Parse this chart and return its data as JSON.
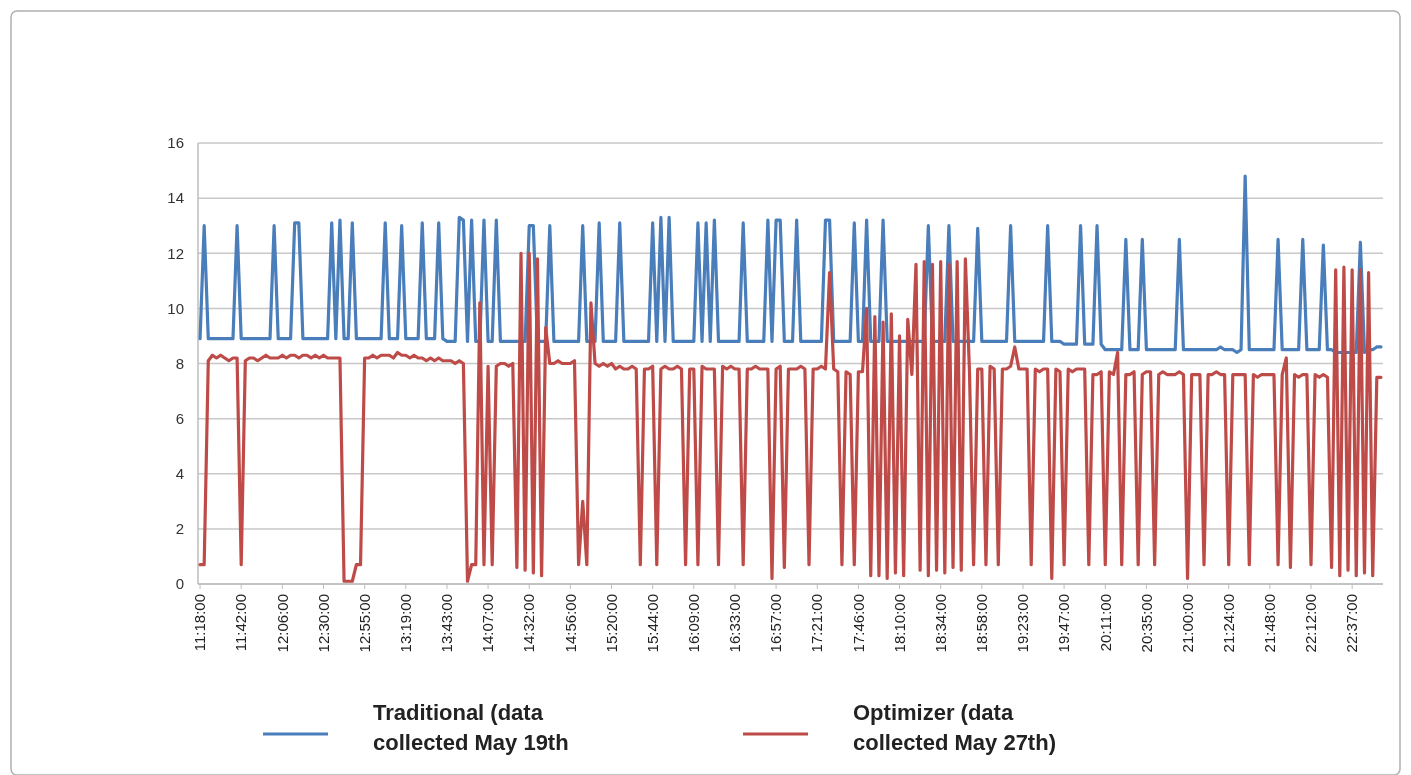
{
  "chart_data": {
    "type": "line",
    "ylim": [
      0,
      16
    ],
    "yticks": [
      0,
      2,
      4,
      6,
      8,
      10,
      12,
      14,
      16
    ],
    "grid": "y",
    "legend": "bottom",
    "marker": "none",
    "line_style": "solid",
    "categories": [
      "11:18:00",
      null,
      null,
      null,
      null,
      null,
      null,
      null,
      null,
      null,
      "11:42:00",
      null,
      null,
      null,
      null,
      null,
      null,
      null,
      null,
      null,
      "12:06:00",
      null,
      null,
      null,
      null,
      null,
      null,
      null,
      null,
      null,
      "12:30:00",
      null,
      null,
      null,
      null,
      null,
      null,
      null,
      null,
      null,
      "12:55:00",
      null,
      null,
      null,
      null,
      null,
      null,
      null,
      null,
      null,
      "13:19:00",
      null,
      null,
      null,
      null,
      null,
      null,
      null,
      null,
      null,
      "13:43:00",
      null,
      null,
      null,
      null,
      null,
      null,
      null,
      null,
      null,
      "14:07:00",
      null,
      null,
      null,
      null,
      null,
      null,
      null,
      null,
      null,
      "14:32:00",
      null,
      null,
      null,
      null,
      null,
      null,
      null,
      null,
      null,
      "14:56:00",
      null,
      null,
      null,
      null,
      null,
      null,
      null,
      null,
      null,
      "15:20:00",
      null,
      null,
      null,
      null,
      null,
      null,
      null,
      null,
      null,
      "15:44:00",
      null,
      null,
      null,
      null,
      null,
      null,
      null,
      null,
      null,
      "16:09:00",
      null,
      null,
      null,
      null,
      null,
      null,
      null,
      null,
      null,
      "16:33:00",
      null,
      null,
      null,
      null,
      null,
      null,
      null,
      null,
      null,
      "16:57:00",
      null,
      null,
      null,
      null,
      null,
      null,
      null,
      null,
      null,
      "17:21:00",
      null,
      null,
      null,
      null,
      null,
      null,
      null,
      null,
      null,
      "17:46:00",
      null,
      null,
      null,
      null,
      null,
      null,
      null,
      null,
      null,
      "18:10:00",
      null,
      null,
      null,
      null,
      null,
      null,
      null,
      null,
      null,
      "18:34:00",
      null,
      null,
      null,
      null,
      null,
      null,
      null,
      null,
      null,
      "18:58:00",
      null,
      null,
      null,
      null,
      null,
      null,
      null,
      null,
      null,
      "19:23:00",
      null,
      null,
      null,
      null,
      null,
      null,
      null,
      null,
      null,
      "19:47:00",
      null,
      null,
      null,
      null,
      null,
      null,
      null,
      null,
      null,
      "20:11:00",
      null,
      null,
      null,
      null,
      null,
      null,
      null,
      null,
      null,
      "20:35:00",
      null,
      null,
      null,
      null,
      null,
      null,
      null,
      null,
      null,
      "21:00:00",
      null,
      null,
      null,
      null,
      null,
      null,
      null,
      null,
      null,
      "21:24:00",
      null,
      null,
      null,
      null,
      null,
      null,
      null,
      null,
      null,
      "21:48:00",
      null,
      null,
      null,
      null,
      null,
      null,
      null,
      null,
      null,
      "22:12:00",
      null,
      null,
      null,
      null,
      null,
      null,
      null,
      null,
      null,
      "22:37:00",
      null,
      null,
      null,
      null,
      null,
      null,
      null
    ],
    "series": [
      {
        "name": "Traditional (data collected May 19th",
        "color": "#4a7ebb",
        "values": [
          8.9,
          13,
          8.9,
          8.9,
          8.9,
          8.9,
          8.9,
          8.9,
          8.9,
          13,
          8.9,
          8.9,
          8.9,
          8.9,
          8.9,
          8.9,
          8.9,
          8.9,
          13,
          8.9,
          8.9,
          8.9,
          8.9,
          13.1,
          13.1,
          8.9,
          8.9,
          8.9,
          8.9,
          8.9,
          8.9,
          8.9,
          13.1,
          8.9,
          13.2,
          8.9,
          8.9,
          13.1,
          8.9,
          8.9,
          8.9,
          8.9,
          8.9,
          8.9,
          8.9,
          13.1,
          8.9,
          8.9,
          8.9,
          13,
          8.9,
          8.9,
          8.9,
          8.9,
          13.1,
          8.9,
          8.9,
          8.9,
          13.1,
          8.9,
          8.8,
          8.8,
          8.8,
          13.3,
          13.2,
          8.8,
          13.2,
          8.8,
          8.8,
          13.2,
          8.8,
          8.8,
          13.2,
          8.8,
          8.8,
          8.8,
          8.8,
          8.8,
          8.8,
          8.8,
          13,
          13,
          8.8,
          8.8,
          8.8,
          13,
          8.8,
          8.8,
          8.8,
          8.8,
          8.8,
          8.8,
          8.8,
          13,
          8.8,
          8.8,
          8.8,
          13.1,
          8.8,
          8.8,
          8.8,
          8.8,
          13.1,
          8.8,
          8.8,
          8.8,
          8.8,
          8.8,
          8.8,
          8.8,
          13.1,
          8.8,
          13.3,
          8.8,
          13.3,
          8.8,
          8.8,
          8.8,
          8.8,
          8.8,
          8.8,
          13.1,
          8.8,
          13.1,
          8.8,
          13.2,
          8.8,
          8.8,
          8.8,
          8.8,
          8.8,
          8.8,
          13.1,
          8.8,
          8.8,
          8.8,
          8.8,
          8.8,
          13.2,
          8.8,
          13.2,
          13.2,
          8.8,
          8.8,
          8.8,
          13.2,
          8.8,
          8.8,
          8.8,
          8.8,
          8.8,
          8.8,
          13.2,
          13.2,
          8.8,
          8.8,
          8.8,
          8.8,
          8.8,
          13.1,
          8.8,
          8.8,
          13.2,
          8.8,
          8.8,
          8.8,
          13.2,
          8.8,
          8.8,
          8.8,
          8.8,
          8.8,
          8.8,
          8.8,
          8.8,
          8.8,
          8.8,
          13,
          8.8,
          8.8,
          8.8,
          8.8,
          13,
          8.8,
          8.8,
          8.8,
          8.8,
          8.8,
          8.8,
          12.9,
          8.8,
          8.8,
          8.8,
          8.8,
          8.8,
          8.8,
          8.8,
          13,
          8.8,
          8.8,
          8.8,
          8.8,
          8.8,
          8.8,
          8.8,
          8.8,
          13,
          8.8,
          8.8,
          8.8,
          8.7,
          8.7,
          8.7,
          8.7,
          13,
          8.7,
          8.7,
          8.7,
          13,
          8.7,
          8.5,
          8.5,
          8.5,
          8.5,
          8.5,
          12.5,
          8.5,
          8.5,
          8.5,
          12.5,
          8.5,
          8.5,
          8.5,
          8.5,
          8.5,
          8.5,
          8.5,
          8.5,
          12.5,
          8.5,
          8.5,
          8.5,
          8.5,
          8.5,
          8.5,
          8.5,
          8.5,
          8.5,
          8.6,
          8.5,
          8.5,
          8.5,
          8.4,
          8.5,
          14.8,
          8.5,
          8.5,
          8.5,
          8.5,
          8.5,
          8.5,
          8.5,
          12.5,
          8.5,
          8.5,
          8.5,
          8.5,
          8.5,
          12.5,
          8.5,
          8.5,
          8.5,
          8.5,
          12.3,
          8.5,
          8.5,
          8.4,
          8.4,
          8.4,
          8.4,
          8.4,
          8.4,
          12.4,
          8.4,
          8.5,
          8.5,
          8.6,
          8.6
        ]
      },
      {
        "name": "Optimizer (data collected May 27th)",
        "color": "#be4b48",
        "values": [
          0.7,
          0.7,
          8.1,
          8.3,
          8.2,
          8.3,
          8.2,
          8.1,
          8.2,
          8.2,
          0.7,
          8.1,
          8.2,
          8.2,
          8.1,
          8.2,
          8.3,
          8.2,
          8.2,
          8.2,
          8.3,
          8.2,
          8.3,
          8.3,
          8.2,
          8.3,
          8.3,
          8.2,
          8.3,
          8.2,
          8.3,
          8.2,
          8.2,
          8.2,
          8.2,
          0.1,
          0.1,
          0.1,
          0.7,
          0.7,
          8.2,
          8.2,
          8.3,
          8.2,
          8.3,
          8.3,
          8.3,
          8.2,
          8.4,
          8.3,
          8.3,
          8.2,
          8.3,
          8.2,
          8.2,
          8.1,
          8.2,
          8.1,
          8.2,
          8.1,
          8.1,
          8.1,
          8,
          8.1,
          8,
          0.1,
          0.7,
          0.7,
          10.2,
          0.7,
          7.9,
          0.7,
          7.9,
          8,
          8,
          7.9,
          8,
          0.6,
          12,
          0.5,
          12,
          0.4,
          11.8,
          0.3,
          9.3,
          8,
          8,
          8.1,
          8,
          8,
          8,
          8.1,
          0.7,
          3,
          0.7,
          10.2,
          8,
          7.9,
          8,
          7.9,
          8,
          7.8,
          7.9,
          7.8,
          7.8,
          7.9,
          7.8,
          0.7,
          7.8,
          7.8,
          7.9,
          0.7,
          7.8,
          7.9,
          7.8,
          7.8,
          7.9,
          7.8,
          0.7,
          7.8,
          7.8,
          0.7,
          7.9,
          7.8,
          7.8,
          7.8,
          0.7,
          7.9,
          7.8,
          7.9,
          7.8,
          7.8,
          0.7,
          7.8,
          7.8,
          7.9,
          7.8,
          7.8,
          7.8,
          0.2,
          7.8,
          7.9,
          0.6,
          7.8,
          7.8,
          7.8,
          7.9,
          7.8,
          0.7,
          7.8,
          7.8,
          7.9,
          7.8,
          11.3,
          7.8,
          7.7,
          0.7,
          7.7,
          7.6,
          0.7,
          7.7,
          7.7,
          10,
          0.3,
          9.7,
          0.3,
          9.5,
          0.2,
          9.8,
          0.4,
          9,
          0.3,
          9.6,
          7.6,
          11.6,
          0.5,
          11.7,
          0.3,
          11.6,
          0.5,
          11.7,
          0.4,
          11.6,
          0.6,
          11.7,
          0.5,
          11.8,
          7.7,
          0.7,
          7.8,
          7.8,
          0.7,
          7.9,
          7.8,
          0.7,
          7.8,
          7.8,
          7.9,
          8.6,
          7.8,
          7.8,
          7.8,
          0.7,
          7.8,
          7.7,
          7.8,
          7.8,
          0.2,
          7.8,
          7.7,
          0.7,
          7.8,
          7.7,
          7.8,
          7.8,
          7.8,
          0.7,
          7.6,
          7.6,
          7.7,
          0.7,
          7.7,
          7.6,
          8.4,
          0.7,
          7.6,
          7.6,
          7.7,
          0.7,
          7.6,
          7.7,
          7.7,
          0.7,
          7.6,
          7.7,
          7.6,
          7.6,
          7.6,
          7.7,
          7.6,
          0.2,
          7.6,
          7.6,
          7.6,
          0.7,
          7.6,
          7.6,
          7.7,
          7.6,
          7.6,
          0.7,
          7.6,
          7.6,
          7.6,
          7.6,
          0.7,
          7.6,
          7.5,
          7.6,
          7.6,
          7.6,
          7.6,
          0.7,
          7.6,
          8.2,
          0.6,
          7.6,
          7.5,
          7.6,
          7.6,
          0.7,
          7.6,
          7.5,
          7.6,
          7.5,
          0.6,
          11.4,
          0.3,
          11.5,
          0.5,
          11.4,
          0.3,
          11.4,
          0.4,
          11.3,
          0.3,
          7.5,
          7.5
        ]
      }
    ]
  }
}
